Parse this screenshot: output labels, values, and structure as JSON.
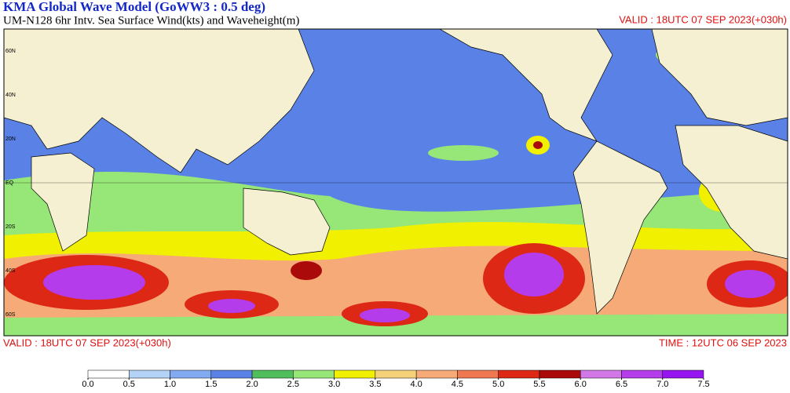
{
  "header": {
    "title": "KMA  Global Wave Model (GoWW3 : 0.5 deg)",
    "subtitle": "UM-N128  6hr Intv. Sea Surface Wind(kts) and Waveheight(m)",
    "valid_top": "VALID : 18UTC 07 SEP 2023(+030h)"
  },
  "map": {
    "lat_labels": [
      "60N",
      "40N",
      "20N",
      "EQ",
      "20S",
      "40S",
      "60S"
    ]
  },
  "footer": {
    "valid": "VALID : 18UTC 07 SEP 2023(+030h)",
    "time": "TIME : 12UTC 06 SEP 2023"
  },
  "colorbar": {
    "colors": [
      "#ffffff",
      "#b4d2f5",
      "#82aaf0",
      "#5a82e6",
      "#50be5a",
      "#96e678",
      "#f0f000",
      "#f5d278",
      "#f5aa78",
      "#f07850",
      "#dc2814",
      "#aa0a0a",
      "#d278e6",
      "#b43ceb",
      "#9614f0"
    ],
    "ticks": [
      {
        "value": 0,
        "label": "0.0"
      },
      {
        "value": 0.5,
        "label": "0.5"
      },
      {
        "value": 1,
        "label": "1.0"
      },
      {
        "value": 1.5,
        "label": "1.5"
      },
      {
        "value": 2,
        "label": "2.0"
      },
      {
        "value": 2.5,
        "label": "2.5"
      },
      {
        "value": 3,
        "label": "3.0"
      },
      {
        "value": 3.5,
        "label": "3.5"
      },
      {
        "value": 4,
        "label": "4.0"
      },
      {
        "value": 4.5,
        "label": "4.5"
      },
      {
        "value": 5,
        "label": "5.0"
      },
      {
        "value": 5.5,
        "label": "5.5"
      },
      {
        "value": 6,
        "label": "6.0"
      },
      {
        "value": 6.5,
        "label": "6.5"
      },
      {
        "value": 7,
        "label": "7.0"
      },
      {
        "value": 7.5,
        "label": "7.5"
      }
    ]
  }
}
